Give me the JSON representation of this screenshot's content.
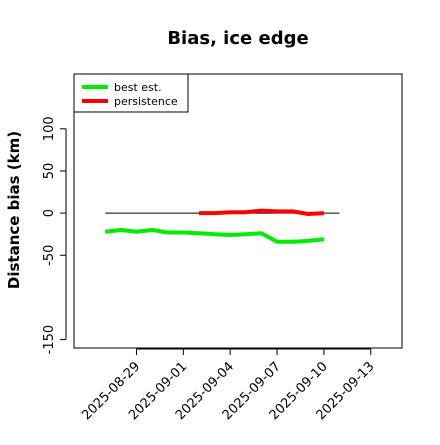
{
  "chart_data": {
    "type": "line",
    "title": "Bias, ice edge",
    "xlabel": "",
    "ylabel": "Distance bias (km)",
    "xlim": [
      "2025-08-25",
      "2025-09-15"
    ],
    "ylim": [
      -160,
      165
    ],
    "x_ticks": [
      "2025-08-29",
      "2025-09-01",
      "2025-09-04",
      "2025-09-07",
      "2025-09-10",
      "2025-09-13"
    ],
    "y_ticks": [
      -150,
      -50,
      0,
      50,
      100
    ],
    "legend_position": "top-left",
    "zero_line": {
      "x_start": "2025-08-27",
      "x_end": "2025-09-11",
      "y": 0,
      "color": "#000000"
    },
    "series": [
      {
        "name": "best est.",
        "color": "#00ee00",
        "points": [
          [
            "2025-08-27",
            -22
          ],
          [
            "2025-08-28",
            -20
          ],
          [
            "2025-08-29",
            -22
          ],
          [
            "2025-08-30",
            -20
          ],
          [
            "2025-08-31",
            -23
          ],
          [
            "2025-09-01",
            -23
          ],
          [
            "2025-09-02",
            -24
          ],
          [
            "2025-09-03",
            -25
          ],
          [
            "2025-09-04",
            -26
          ],
          [
            "2025-09-05",
            -25
          ],
          [
            "2025-09-06",
            -24
          ],
          [
            "2025-09-07",
            -34
          ],
          [
            "2025-09-08",
            -34
          ],
          [
            "2025-09-09",
            -33
          ],
          [
            "2025-09-10",
            -31
          ]
        ]
      },
      {
        "name": "persistence",
        "color": "#ff0000",
        "points": [
          [
            "2025-09-02",
            0
          ],
          [
            "2025-09-03",
            0
          ],
          [
            "2025-09-04",
            1
          ],
          [
            "2025-09-05",
            1
          ],
          [
            "2025-09-06",
            3
          ],
          [
            "2025-09-07",
            2
          ],
          [
            "2025-09-08",
            2
          ],
          [
            "2025-09-09",
            -1
          ],
          [
            "2025-09-10",
            0
          ]
        ]
      }
    ]
  }
}
